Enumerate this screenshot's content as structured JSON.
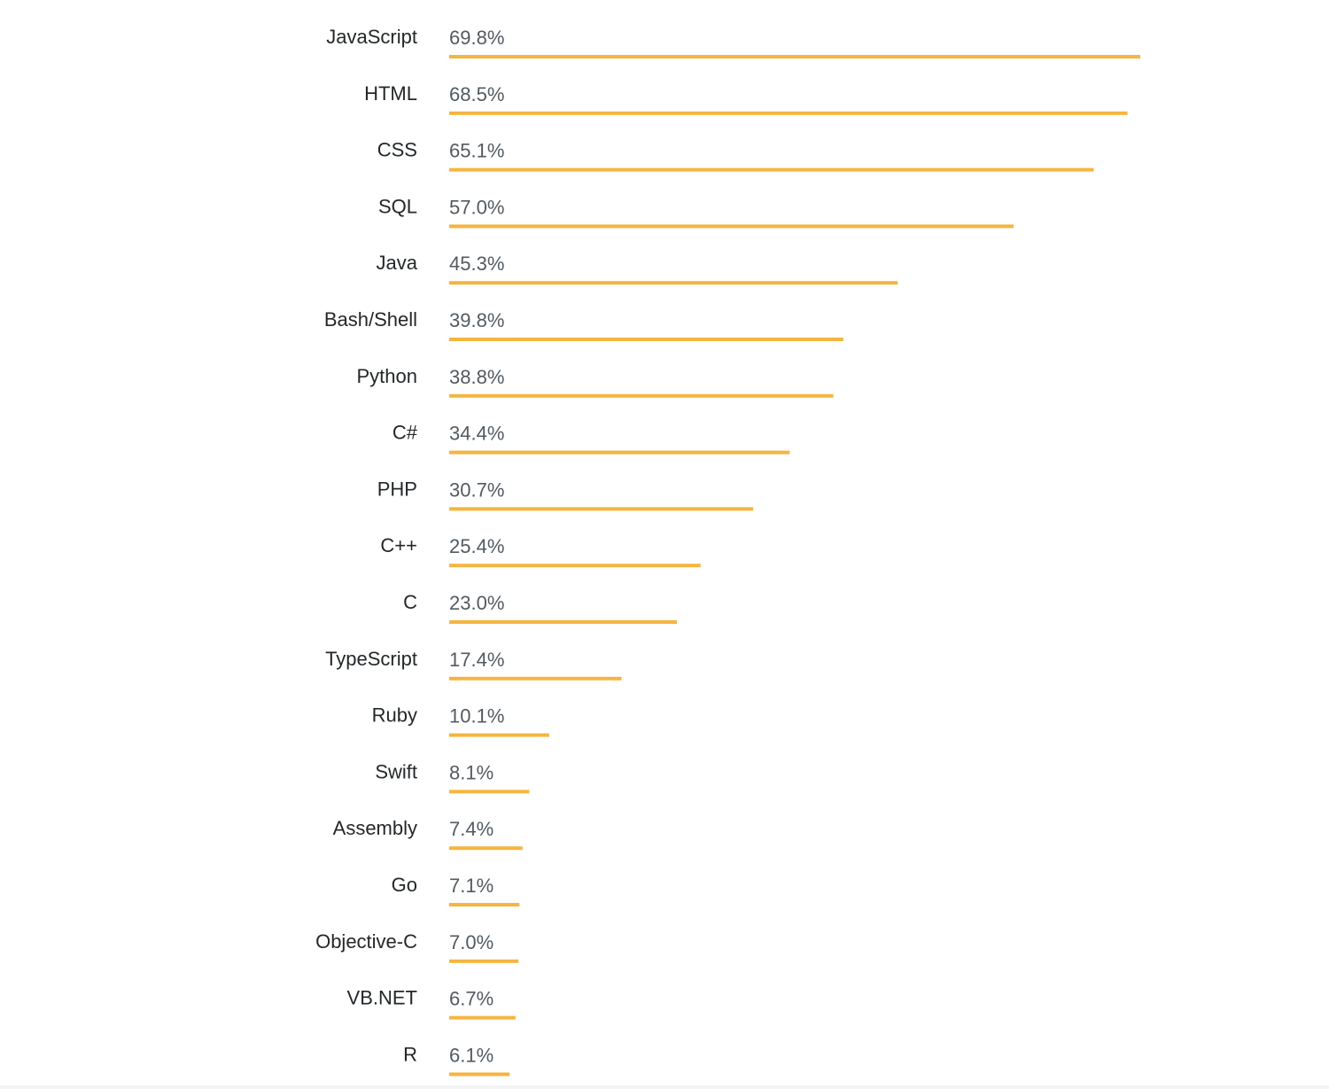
{
  "chart_data": {
    "type": "bar",
    "orientation": "horizontal",
    "categories": [
      "JavaScript",
      "HTML",
      "CSS",
      "SQL",
      "Java",
      "Bash/Shell",
      "Python",
      "C#",
      "PHP",
      "C++",
      "C",
      "TypeScript",
      "Ruby",
      "Swift",
      "Assembly",
      "Go",
      "Objective-C",
      "VB.NET",
      "R"
    ],
    "values": [
      69.8,
      68.5,
      65.1,
      57.0,
      45.3,
      39.8,
      38.8,
      34.4,
      30.7,
      25.4,
      23.0,
      17.4,
      10.1,
      8.1,
      7.4,
      7.1,
      7.0,
      6.7,
      6.1
    ],
    "value_labels": [
      "69.8%",
      "68.5%",
      "65.1%",
      "57.0%",
      "45.3%",
      "39.8%",
      "38.8%",
      "34.4%",
      "30.7%",
      "25.4%",
      "23.0%",
      "17.4%",
      "10.1%",
      "8.1%",
      "7.4%",
      "7.1%",
      "7.0%",
      "6.7%",
      "6.1%"
    ],
    "unit": "%",
    "xlim": [
      0,
      100
    ],
    "grid": false,
    "legend": "none",
    "bar_color": "#f5b53f",
    "label_color": "#242729",
    "value_label_color": "#535a60"
  }
}
